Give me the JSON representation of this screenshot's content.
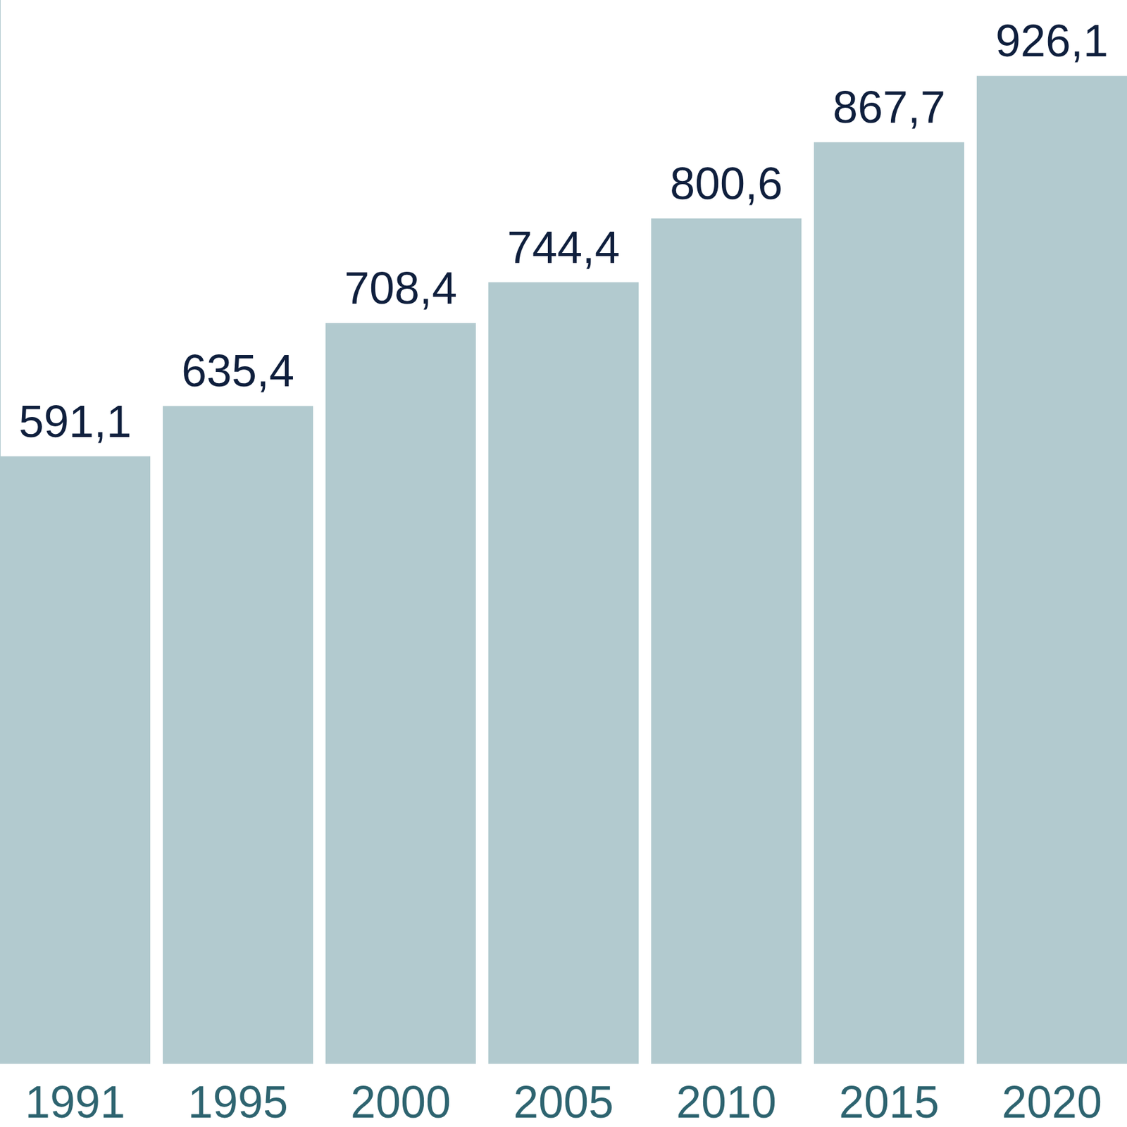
{
  "chart_data": {
    "type": "bar",
    "categories": [
      "1991",
      "1995",
      "2000",
      "2005",
      "2010",
      "2015",
      "2020"
    ],
    "values": [
      591.1,
      635.4,
      708.4,
      744.4,
      800.6,
      867.7,
      926.1
    ],
    "value_labels": [
      "591,1",
      "635,4",
      "708,4",
      "744,4",
      "800,6",
      "867,7",
      "926,1"
    ],
    "color": "#b2cacf",
    "ylim": [
      56,
      993
    ],
    "data_labels": true,
    "tick_labels": "x",
    "grid": false
  }
}
